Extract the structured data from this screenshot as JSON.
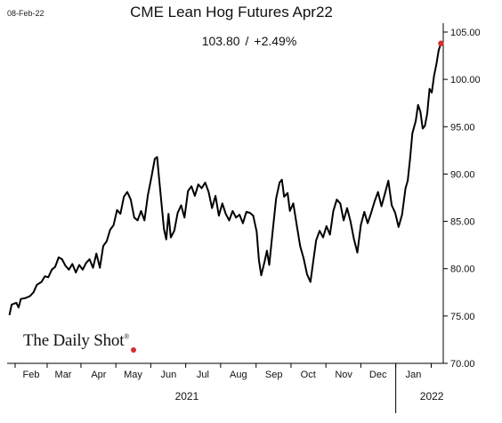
{
  "header": {
    "date": "08-Feb-22",
    "title": "CME Lean Hog Futures Apr22",
    "last_value": "103.80",
    "separator": "/",
    "change": "+2.49%"
  },
  "branding": {
    "logo_text": "The Daily Shot",
    "registered_mark": "®"
  },
  "chart_data": {
    "type": "line",
    "title": "CME Lean Hog Futures Apr22",
    "xlabel": "",
    "ylabel": "",
    "ylim": [
      70,
      105
    ],
    "yticks": [
      "70.00",
      "75.00",
      "80.00",
      "85.00",
      "90.00",
      "95.00",
      "100.00",
      "105.00"
    ],
    "xlim": [
      "2021-01-25",
      "2022-02-10"
    ],
    "month_labels": [
      {
        "label": "Feb",
        "date": "2021-02-15"
      },
      {
        "label": "Mar",
        "date": "2021-03-15"
      },
      {
        "label": "Apr",
        "date": "2021-04-15"
      },
      {
        "label": "May",
        "date": "2021-05-15"
      },
      {
        "label": "Jun",
        "date": "2021-06-15"
      },
      {
        "label": "Jul",
        "date": "2021-07-15"
      },
      {
        "label": "Aug",
        "date": "2021-08-15"
      },
      {
        "label": "Sep",
        "date": "2021-09-15"
      },
      {
        "label": "Oct",
        "date": "2021-10-15"
      },
      {
        "label": "Nov",
        "date": "2021-11-15"
      },
      {
        "label": "Dec",
        "date": "2021-12-15"
      },
      {
        "label": "Jan",
        "date": "2022-01-15"
      }
    ],
    "year_labels": [
      {
        "label": "2021",
        "date": "2021-07-01"
      },
      {
        "label": "2022",
        "date": "2022-01-31"
      }
    ],
    "line_color": "#000000",
    "endpoint_color": "#d32f2f",
    "grid": false,
    "series": [
      {
        "points": [
          [
            "2021-01-27",
            75.1
          ],
          [
            "2021-01-29",
            76.2
          ],
          [
            "2021-02-02",
            76.4
          ],
          [
            "2021-02-04",
            75.9
          ],
          [
            "2021-02-06",
            76.8
          ],
          [
            "2021-02-10",
            76.9
          ],
          [
            "2021-02-14",
            77.1
          ],
          [
            "2021-02-17",
            77.5
          ],
          [
            "2021-02-20",
            78.3
          ],
          [
            "2021-02-24",
            78.6
          ],
          [
            "2021-02-27",
            79.2
          ],
          [
            "2021-03-02",
            79.1
          ],
          [
            "2021-03-05",
            79.9
          ],
          [
            "2021-03-08",
            80.2
          ],
          [
            "2021-03-11",
            81.2
          ],
          [
            "2021-03-14",
            81.0
          ],
          [
            "2021-03-17",
            80.3
          ],
          [
            "2021-03-20",
            79.9
          ],
          [
            "2021-03-23",
            80.5
          ],
          [
            "2021-03-26",
            79.6
          ],
          [
            "2021-03-29",
            80.4
          ],
          [
            "2021-04-01",
            79.9
          ],
          [
            "2021-04-04",
            80.6
          ],
          [
            "2021-04-07",
            81.0
          ],
          [
            "2021-04-10",
            80.1
          ],
          [
            "2021-04-13",
            81.6
          ],
          [
            "2021-04-16",
            80.1
          ],
          [
            "2021-04-19",
            82.4
          ],
          [
            "2021-04-22",
            82.9
          ],
          [
            "2021-04-25",
            84.1
          ],
          [
            "2021-04-28",
            84.6
          ],
          [
            "2021-05-01",
            86.2
          ],
          [
            "2021-05-04",
            85.8
          ],
          [
            "2021-05-07",
            87.6
          ],
          [
            "2021-05-10",
            88.1
          ],
          [
            "2021-05-13",
            87.3
          ],
          [
            "2021-05-16",
            85.4
          ],
          [
            "2021-05-19",
            85.1
          ],
          [
            "2021-05-22",
            86.1
          ],
          [
            "2021-05-25",
            85.1
          ],
          [
            "2021-05-28",
            87.8
          ],
          [
            "2021-05-31",
            89.6
          ],
          [
            "2021-06-03",
            91.6
          ],
          [
            "2021-06-05",
            91.8
          ],
          [
            "2021-06-08",
            88.0
          ],
          [
            "2021-06-11",
            84.2
          ],
          [
            "2021-06-13",
            83.1
          ],
          [
            "2021-06-15",
            85.8
          ],
          [
            "2021-06-17",
            83.3
          ],
          [
            "2021-06-20",
            84.0
          ],
          [
            "2021-06-23",
            85.9
          ],
          [
            "2021-06-26",
            86.7
          ],
          [
            "2021-06-29",
            85.4
          ],
          [
            "2021-07-02",
            88.2
          ],
          [
            "2021-07-05",
            88.7
          ],
          [
            "2021-07-08",
            87.7
          ],
          [
            "2021-07-11",
            88.9
          ],
          [
            "2021-07-14",
            88.5
          ],
          [
            "2021-07-17",
            89.1
          ],
          [
            "2021-07-20",
            88.1
          ],
          [
            "2021-07-23",
            86.4
          ],
          [
            "2021-07-26",
            87.7
          ],
          [
            "2021-07-29",
            85.6
          ],
          [
            "2021-08-01",
            86.9
          ],
          [
            "2021-08-04",
            85.8
          ],
          [
            "2021-08-07",
            85.1
          ],
          [
            "2021-08-10",
            86.1
          ],
          [
            "2021-08-13",
            85.4
          ],
          [
            "2021-08-16",
            85.7
          ],
          [
            "2021-08-19",
            84.8
          ],
          [
            "2021-08-22",
            86.0
          ],
          [
            "2021-08-25",
            85.9
          ],
          [
            "2021-08-28",
            85.6
          ],
          [
            "2021-08-31",
            83.9
          ],
          [
            "2021-09-02",
            80.9
          ],
          [
            "2021-09-04",
            79.3
          ],
          [
            "2021-09-07",
            80.8
          ],
          [
            "2021-09-09",
            81.9
          ],
          [
            "2021-09-11",
            80.4
          ],
          [
            "2021-09-14",
            84.0
          ],
          [
            "2021-09-17",
            87.4
          ],
          [
            "2021-09-20",
            89.1
          ],
          [
            "2021-09-22",
            89.4
          ],
          [
            "2021-09-24",
            87.6
          ],
          [
            "2021-09-27",
            88.0
          ],
          [
            "2021-09-29",
            86.1
          ],
          [
            "2021-10-02",
            86.9
          ],
          [
            "2021-10-05",
            84.6
          ],
          [
            "2021-10-08",
            82.4
          ],
          [
            "2021-10-11",
            81.1
          ],
          [
            "2021-10-14",
            79.4
          ],
          [
            "2021-10-17",
            78.6
          ],
          [
            "2021-10-19",
            80.4
          ],
          [
            "2021-10-22",
            83.0
          ],
          [
            "2021-10-25",
            84.0
          ],
          [
            "2021-10-28",
            83.3
          ],
          [
            "2021-10-31",
            84.5
          ],
          [
            "2021-11-03",
            83.6
          ],
          [
            "2021-11-06",
            86.1
          ],
          [
            "2021-11-09",
            87.3
          ],
          [
            "2021-11-12",
            86.9
          ],
          [
            "2021-11-15",
            85.1
          ],
          [
            "2021-11-18",
            86.4
          ],
          [
            "2021-11-21",
            85.0
          ],
          [
            "2021-11-24",
            83.1
          ],
          [
            "2021-11-27",
            81.7
          ],
          [
            "2021-11-30",
            84.6
          ],
          [
            "2021-12-03",
            86.0
          ],
          [
            "2021-12-06",
            84.8
          ],
          [
            "2021-12-09",
            85.9
          ],
          [
            "2021-12-12",
            87.1
          ],
          [
            "2021-12-15",
            88.1
          ],
          [
            "2021-12-18",
            86.6
          ],
          [
            "2021-12-21",
            87.9
          ],
          [
            "2021-12-24",
            89.3
          ],
          [
            "2021-12-27",
            86.7
          ],
          [
            "2021-12-30",
            85.9
          ],
          [
            "2022-01-02",
            84.4
          ],
          [
            "2022-01-05",
            85.7
          ],
          [
            "2022-01-08",
            88.5
          ],
          [
            "2022-01-10",
            89.3
          ],
          [
            "2022-01-12",
            91.6
          ],
          [
            "2022-01-14",
            94.3
          ],
          [
            "2022-01-17",
            95.6
          ],
          [
            "2022-01-19",
            97.3
          ],
          [
            "2022-01-21",
            96.6
          ],
          [
            "2022-01-23",
            94.8
          ],
          [
            "2022-01-25",
            95.1
          ],
          [
            "2022-01-27",
            96.4
          ],
          [
            "2022-01-29",
            99.0
          ],
          [
            "2022-01-31",
            98.6
          ],
          [
            "2022-02-02",
            100.4
          ],
          [
            "2022-02-04",
            101.6
          ],
          [
            "2022-02-06",
            103.1
          ],
          [
            "2022-02-08",
            103.8
          ]
        ]
      }
    ]
  }
}
